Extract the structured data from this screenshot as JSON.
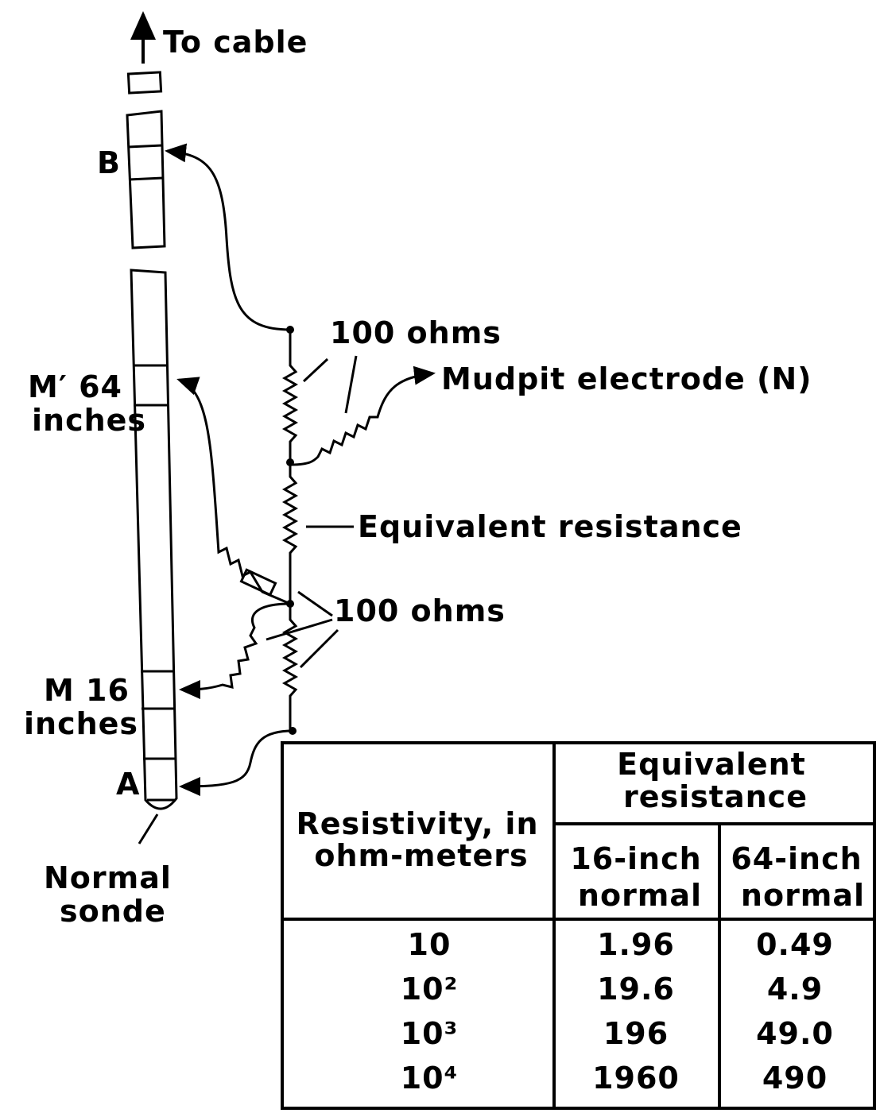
{
  "labels": {
    "to_cable": "To cable",
    "b": "B",
    "ohms_top": "100 ohms",
    "mudpit": "Mudpit electrode (N)",
    "m_prime": [
      "M′ 64",
      "inches"
    ],
    "equivalent": "Equivalent resistance",
    "ohms_mid": "100 ohms",
    "m": [
      "M 16",
      "inches"
    ],
    "a": "A",
    "sonde": [
      "Normal",
      "sonde"
    ]
  },
  "table": {
    "header": {
      "resistivity": [
        "Resistivity, in",
        "ohm-meters"
      ],
      "equivalent": [
        "Equivalent",
        "resistance"
      ],
      "col16": [
        "16-inch",
        "normal"
      ],
      "col64": [
        "64-inch",
        "normal"
      ]
    },
    "rows": [
      [
        "10",
        "1.96",
        "0.49"
      ],
      [
        "10²",
        "19.6",
        "4.9"
      ],
      [
        "10³",
        "196",
        "49.0"
      ],
      [
        "10⁴",
        "1960",
        "490"
      ]
    ]
  }
}
